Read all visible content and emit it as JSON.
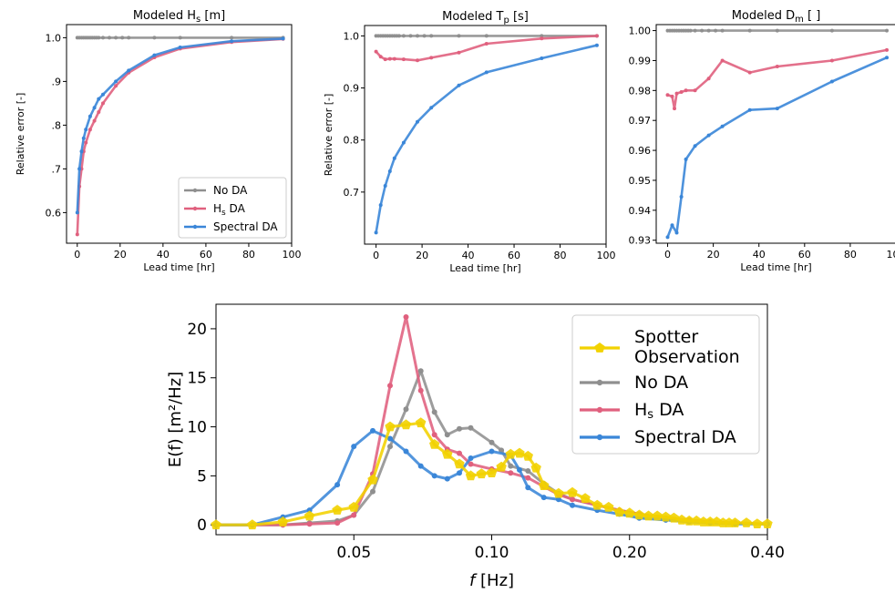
{
  "colors": {
    "no_da": "#8f8f8f",
    "hs_da": "#e0607e",
    "spectral_da": "#3a86d8",
    "spotter": "#f2d200"
  },
  "chart_data": [
    {
      "id": "hs",
      "type": "line",
      "title": "Modeled H",
      "title_sub": "s",
      "title_unit": " [m]",
      "xlabel": "Lead time [hr]",
      "ylabel": "Relative error [-]",
      "xlim": [
        -5,
        100
      ],
      "ylim": [
        0.53,
        1.03
      ],
      "xticks": [
        0,
        20,
        40,
        60,
        80,
        100
      ],
      "yticks": [
        0.6,
        0.7,
        0.8,
        0.9,
        1.0
      ],
      "ytick_labels": [
        "0.6",
        ".7",
        ".8",
        ".9",
        "1.0"
      ],
      "legend": {
        "placement": "lower-right"
      },
      "series": [
        {
          "name": "No DA",
          "key": "no_da",
          "x": [
            0,
            1,
            2,
            3,
            4,
            5,
            6,
            7,
            8,
            9,
            10,
            12,
            15,
            18,
            21,
            24,
            36,
            48,
            72,
            96
          ],
          "y": [
            1.0,
            1.0,
            1.0,
            1.0,
            1.0,
            1.0,
            1.0,
            1.0,
            1.0,
            1.0,
            1.0,
            1.0,
            1.0,
            1.0,
            1.0,
            1.0,
            1.0,
            1.0,
            1.0,
            1.0
          ]
        },
        {
          "name": "H",
          "name_sub": "s",
          "name_suffix": " DA",
          "key": "hs_da",
          "x": [
            0,
            1,
            2,
            3,
            4,
            6,
            8,
            10,
            12,
            18,
            24,
            36,
            48,
            72,
            96
          ],
          "y": [
            0.55,
            0.66,
            0.7,
            0.74,
            0.76,
            0.79,
            0.81,
            0.83,
            0.85,
            0.89,
            0.92,
            0.955,
            0.975,
            0.99,
            0.997
          ]
        },
        {
          "name": "Spectral DA",
          "key": "spectral_da",
          "x": [
            0,
            1,
            2,
            3,
            4,
            6,
            8,
            10,
            12,
            18,
            24,
            36,
            48,
            72,
            96
          ],
          "y": [
            0.6,
            0.7,
            0.74,
            0.77,
            0.79,
            0.82,
            0.84,
            0.86,
            0.87,
            0.9,
            0.925,
            0.96,
            0.978,
            0.992,
            0.998
          ]
        }
      ]
    },
    {
      "id": "tp",
      "type": "line",
      "title": "Modeled T",
      "title_sub": "p",
      "title_unit": " [s]",
      "xlabel": "Lead time [hr]",
      "ylabel": "Relative error [-]",
      "xlim": [
        -5,
        100
      ],
      "ylim": [
        0.6,
        1.02
      ],
      "xticks": [
        0,
        20,
        40,
        60,
        80,
        100
      ],
      "yticks": [
        0.7,
        0.8,
        0.9,
        1.0
      ],
      "ytick_labels": [
        "0.7",
        "0.8",
        "0.9",
        "1.0"
      ],
      "series": [
        {
          "name": "No DA",
          "key": "no_da",
          "x": [
            0,
            1,
            2,
            3,
            4,
            5,
            6,
            7,
            8,
            9,
            10,
            12,
            15,
            18,
            21,
            24,
            36,
            48,
            72,
            96
          ],
          "y": [
            1.0,
            1.0,
            1.0,
            1.0,
            1.0,
            1.0,
            1.0,
            1.0,
            1.0,
            1.0,
            1.0,
            1.0,
            1.0,
            1.0,
            1.0,
            1.0,
            1.0,
            1.0,
            1.0,
            1.0
          ]
        },
        {
          "name": "H",
          "name_sub": "s",
          "name_suffix": " DA",
          "key": "hs_da",
          "x": [
            0,
            2,
            4,
            6,
            8,
            12,
            18,
            24,
            36,
            48,
            72,
            96
          ],
          "y": [
            0.97,
            0.96,
            0.955,
            0.956,
            0.956,
            0.955,
            0.953,
            0.958,
            0.968,
            0.985,
            0.995,
            1.0
          ]
        },
        {
          "name": "Spectral DA",
          "key": "spectral_da",
          "x": [
            0,
            2,
            4,
            6,
            8,
            12,
            18,
            24,
            36,
            48,
            72,
            96
          ],
          "y": [
            0.622,
            0.675,
            0.712,
            0.74,
            0.765,
            0.795,
            0.835,
            0.862,
            0.905,
            0.93,
            0.957,
            0.982
          ]
        }
      ]
    },
    {
      "id": "dm",
      "type": "line",
      "title": "Modeled D",
      "title_sub": "m",
      "title_unit": " [ ]",
      "xlabel": "Lead time [hr]",
      "ylabel": "",
      "xlim": [
        -5,
        100
      ],
      "ylim": [
        0.929,
        1.002
      ],
      "xticks": [
        0,
        20,
        40,
        60,
        80,
        100
      ],
      "yticks": [
        0.93,
        0.94,
        0.95,
        0.96,
        0.97,
        0.98,
        0.99,
        1.0
      ],
      "ytick_labels": [
        "0.93",
        "0.94",
        "0.95",
        "0.96",
        "0.97",
        "0.98",
        "0.99",
        "1.00"
      ],
      "series": [
        {
          "name": "No DA",
          "key": "no_da",
          "x": [
            0,
            1,
            2,
            3,
            4,
            5,
            6,
            7,
            8,
            9,
            10,
            12,
            15,
            18,
            21,
            24,
            36,
            48,
            72,
            96
          ],
          "y": [
            1.0,
            1.0,
            1.0,
            1.0,
            1.0,
            1.0,
            1.0,
            1.0,
            1.0,
            1.0,
            1.0,
            1.0,
            1.0,
            1.0,
            1.0,
            1.0,
            1.0,
            1.0,
            1.0,
            1.0
          ]
        },
        {
          "name": "H",
          "name_sub": "s",
          "name_suffix": " DA",
          "key": "hs_da",
          "x": [
            0,
            2,
            3,
            4,
            6,
            8,
            12,
            18,
            24,
            36,
            48,
            72,
            96
          ],
          "y": [
            0.9785,
            0.978,
            0.974,
            0.979,
            0.9795,
            0.98,
            0.98,
            0.984,
            0.99,
            0.986,
            0.988,
            0.99,
            0.9935
          ]
        },
        {
          "name": "Spectral DA",
          "key": "spectral_da",
          "x": [
            0,
            2,
            4,
            6,
            8,
            12,
            18,
            24,
            36,
            48,
            72,
            96
          ],
          "y": [
            0.931,
            0.935,
            0.9325,
            0.9445,
            0.957,
            0.9615,
            0.965,
            0.968,
            0.9735,
            0.974,
            0.983,
            0.991
          ]
        }
      ]
    },
    {
      "id": "spectrum",
      "type": "line",
      "xlabel": "f",
      "xlabel_unit": " [Hz]",
      "ylabel": "E(f) [m²/Hz]",
      "xscale": "log",
      "xlim": [
        0.025,
        0.4
      ],
      "ylim": [
        -1,
        22.5
      ],
      "xticks": [
        0.05,
        0.1,
        0.2,
        0.4
      ],
      "xtick_labels": [
        "0.05",
        "0.10",
        "0.20",
        "0.40"
      ],
      "yticks": [
        0,
        5,
        10,
        15,
        20
      ],
      "ytick_labels": [
        "0",
        "5",
        "10",
        "15",
        "20"
      ],
      "legend": {
        "placement": "upper-right"
      },
      "series": [
        {
          "name": "Spotter Observation",
          "name_lines": [
            "Spotter",
            "Observation"
          ],
          "key": "spotter",
          "marker": "pentagon",
          "x": [
            0.025,
            0.03,
            0.035,
            0.04,
            0.046,
            0.05,
            0.055,
            0.06,
            0.065,
            0.07,
            0.075,
            0.08,
            0.085,
            0.09,
            0.095,
            0.1,
            0.105,
            0.11,
            0.115,
            0.12,
            0.125,
            0.13,
            0.14,
            0.15,
            0.16,
            0.17,
            0.18,
            0.19,
            0.2,
            0.21,
            0.22,
            0.23,
            0.24,
            0.25,
            0.26,
            0.27,
            0.28,
            0.29,
            0.3,
            0.31,
            0.32,
            0.33,
            0.34,
            0.36,
            0.38,
            0.4
          ],
          "y": [
            0,
            0,
            0.3,
            0.9,
            1.5,
            1.8,
            4.6,
            10.0,
            10.2,
            10.4,
            8.2,
            7.2,
            6.2,
            5.0,
            5.2,
            5.3,
            5.9,
            7.2,
            7.3,
            7.0,
            5.8,
            4.0,
            3.2,
            3.3,
            2.7,
            2.0,
            1.8,
            1.3,
            1.2,
            1.0,
            0.9,
            0.9,
            0.8,
            0.7,
            0.5,
            0.4,
            0.4,
            0.3,
            0.3,
            0.3,
            0.2,
            0.2,
            0.2,
            0.2,
            0.1,
            0.1
          ]
        },
        {
          "name": "No DA",
          "key": "no_da",
          "marker": "circle",
          "x": [
            0.025,
            0.03,
            0.035,
            0.04,
            0.046,
            0.05,
            0.055,
            0.06,
            0.065,
            0.07,
            0.075,
            0.08,
            0.085,
            0.09,
            0.1,
            0.105,
            0.11,
            0.12,
            0.13,
            0.14,
            0.15,
            0.17,
            0.19,
            0.21,
            0.24,
            0.27,
            0.3,
            0.34,
            0.4
          ],
          "y": [
            0,
            0,
            0,
            0.2,
            0.4,
            1.0,
            3.4,
            8.0,
            11.8,
            15.7,
            11.5,
            9.2,
            9.8,
            9.9,
            8.4,
            7.6,
            6.0,
            5.5,
            4.2,
            3.2,
            2.6,
            2.0,
            1.5,
            1.1,
            0.7,
            0.5,
            0.3,
            0.2,
            0.1
          ]
        },
        {
          "name": "H",
          "name_sub": "s",
          "name_suffix": " DA",
          "key": "hs_da",
          "marker": "circle",
          "x": [
            0.025,
            0.03,
            0.035,
            0.04,
            0.046,
            0.05,
            0.055,
            0.06,
            0.065,
            0.07,
            0.075,
            0.08,
            0.085,
            0.09,
            0.1,
            0.11,
            0.12,
            0.13,
            0.14,
            0.15,
            0.17,
            0.19,
            0.21,
            0.24,
            0.27,
            0.3,
            0.34,
            0.4
          ],
          "y": [
            0,
            0,
            0,
            0.1,
            0.2,
            1.0,
            5.2,
            14.2,
            21.2,
            13.7,
            9.2,
            7.7,
            7.3,
            6.2,
            5.7,
            5.3,
            4.8,
            3.9,
            3.1,
            2.6,
            2.0,
            1.5,
            1.1,
            0.7,
            0.5,
            0.3,
            0.2,
            0.1
          ]
        },
        {
          "name": "Spectral DA",
          "key": "spectral_da",
          "marker": "circle",
          "x": [
            0.025,
            0.03,
            0.035,
            0.04,
            0.046,
            0.05,
            0.055,
            0.06,
            0.065,
            0.07,
            0.075,
            0.08,
            0.085,
            0.09,
            0.1,
            0.11,
            0.115,
            0.12,
            0.13,
            0.14,
            0.15,
            0.17,
            0.19,
            0.21,
            0.24,
            0.27,
            0.3,
            0.34,
            0.4
          ],
          "y": [
            0,
            0,
            0.8,
            1.5,
            4.1,
            8.0,
            9.6,
            8.8,
            7.5,
            6.0,
            5.0,
            4.7,
            5.3,
            6.8,
            7.5,
            7.1,
            5.6,
            3.8,
            2.8,
            2.6,
            2.0,
            1.5,
            1.1,
            0.7,
            0.5,
            0.3,
            0.2,
            0.1,
            0.1
          ]
        }
      ]
    }
  ]
}
